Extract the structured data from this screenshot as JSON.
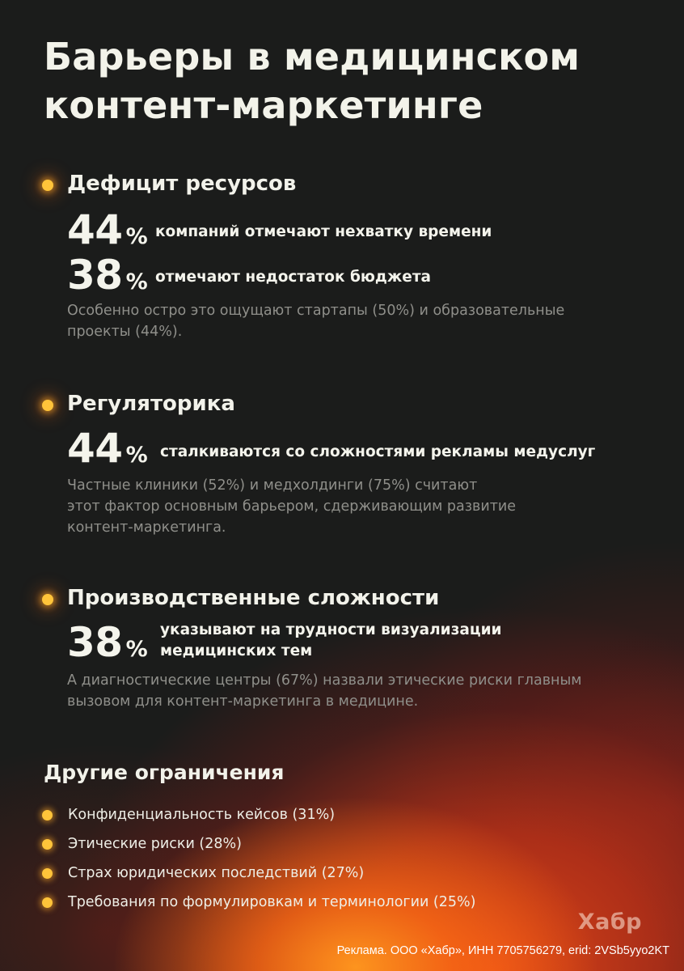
{
  "title": {
    "line1": "Барьеры в медицинском",
    "line2": "контент-маркетинге"
  },
  "sections": [
    {
      "title": "Дефицит ресурсов",
      "stats": [
        {
          "number": "44",
          "percent": "%",
          "text": "компаний отмечают нехватку времени"
        },
        {
          "number": "38",
          "percent": "%",
          "text": "отмечают недостаток бюджета"
        }
      ],
      "note": [
        "Особенно остро это ощущают стартапы (50%) и образовательные",
        "проекты (44%)."
      ]
    },
    {
      "title": "Регуляторика",
      "stats": [
        {
          "number": "44",
          "percent": "%",
          "text": "сталкиваются со сложностями рекламы медуслуг"
        }
      ],
      "note": [
        "Частные клиники (52%) и медхолдинги (75%) считают",
        "этот фактор основным барьером, сдерживающим развитие",
        "контент-маркетинга."
      ]
    },
    {
      "title": "Производственные сложности",
      "stats": [
        {
          "number": "38",
          "percent": "%",
          "text_lines": [
            "указывают на трудности визуализации",
            "медицинских тем"
          ]
        }
      ],
      "note": [
        "А диагностические центры (67%) назвали этические риски главным",
        "вызовом для контент-маркетинга в медицине."
      ]
    }
  ],
  "other": {
    "title": "Другие ограничения",
    "items": [
      "Конфиденциальность кейсов (31%)",
      "Этические риски (28%)",
      "Страх юридических последствий (27%)",
      "Требования по формулировкам и терминологии (25%)"
    ]
  },
  "brand": "Хабр",
  "footer": "Реклама. ООО «Хабр», ИНН 7705756279, erid: 2VSb5yyo2KT",
  "colors": {
    "background": "#1b1c1b",
    "accent_dot": "#ffc43a",
    "glow": "#eb4816",
    "text": "#f2f2ea",
    "muted_text": "#8f8f8a"
  },
  "icons": {
    "section_bullet": "glowing-dot-icon"
  }
}
